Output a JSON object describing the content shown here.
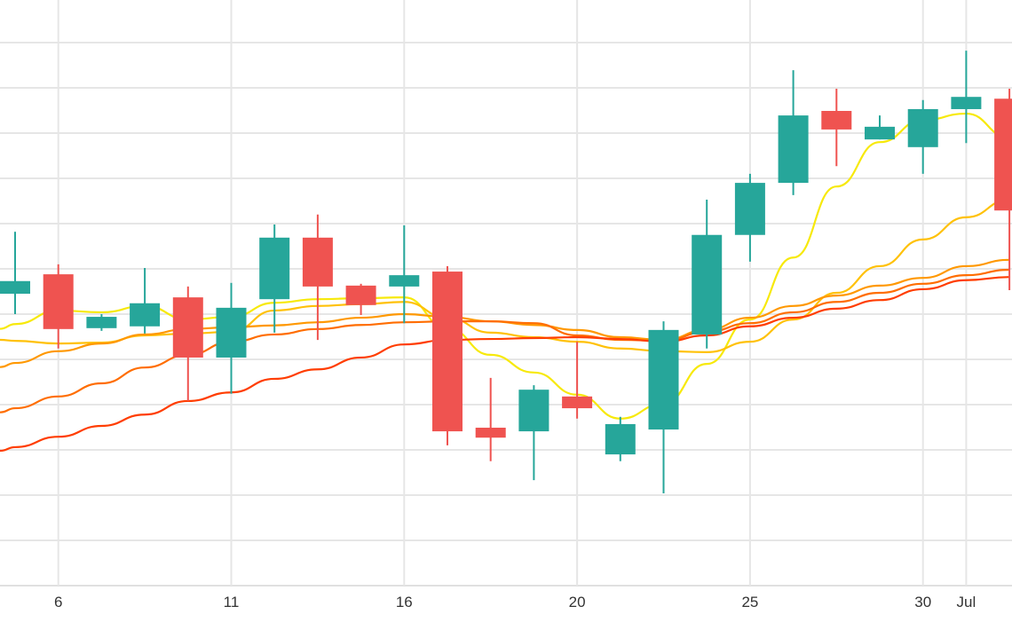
{
  "chart_data": {
    "type": "candlestick",
    "title": "",
    "xlabel": "",
    "ylabel": "",
    "x_unit": "trading-day index",
    "ylim": [
      0,
      129.4
    ],
    "y_grid_step": 10,
    "grid": true,
    "x_ticks": [
      {
        "index": 1,
        "label": "6"
      },
      {
        "index": 5,
        "label": "11"
      },
      {
        "index": 9,
        "label": "16"
      },
      {
        "index": 13,
        "label": "20"
      },
      {
        "index": 17,
        "label": "25"
      },
      {
        "index": 21,
        "label": "30"
      },
      {
        "index": 22,
        "label": "Jul"
      }
    ],
    "colors": {
      "up": "#26a69a",
      "down": "#ef5350",
      "grid": "#e6e6e6",
      "axis": "#e0e0e0"
    },
    "candles": [
      {
        "o": 64.5,
        "h": 78.2,
        "l": 60.0,
        "c": 67.3
      },
      {
        "o": 68.8,
        "h": 71.0,
        "l": 52.4,
        "c": 56.7
      },
      {
        "o": 56.9,
        "h": 60.0,
        "l": 56.3,
        "c": 59.4
      },
      {
        "o": 57.3,
        "h": 70.2,
        "l": 55.7,
        "c": 62.4
      },
      {
        "o": 63.7,
        "h": 66.1,
        "l": 40.8,
        "c": 50.4
      },
      {
        "o": 50.4,
        "h": 66.9,
        "l": 42.4,
        "c": 61.4
      },
      {
        "o": 63.3,
        "h": 79.8,
        "l": 55.9,
        "c": 76.9
      },
      {
        "o": 76.9,
        "h": 82.0,
        "l": 54.3,
        "c": 66.1
      },
      {
        "o": 66.3,
        "h": 66.7,
        "l": 59.8,
        "c": 62.0
      },
      {
        "o": 66.1,
        "h": 79.6,
        "l": 58.0,
        "c": 68.6
      },
      {
        "o": 69.4,
        "h": 70.6,
        "l": 31.0,
        "c": 34.1
      },
      {
        "o": 34.9,
        "h": 45.9,
        "l": 27.5,
        "c": 32.7
      },
      {
        "o": 34.1,
        "h": 44.3,
        "l": 23.3,
        "c": 43.3
      },
      {
        "o": 41.8,
        "h": 53.9,
        "l": 36.9,
        "c": 39.2
      },
      {
        "o": 29.0,
        "h": 37.3,
        "l": 27.5,
        "c": 35.7
      },
      {
        "o": 34.5,
        "h": 58.4,
        "l": 20.4,
        "c": 56.5
      },
      {
        "o": 55.5,
        "h": 85.3,
        "l": 52.4,
        "c": 77.5
      },
      {
        "o": 77.5,
        "h": 91.0,
        "l": 71.6,
        "c": 89.0
      },
      {
        "o": 89.0,
        "h": 113.9,
        "l": 86.3,
        "c": 103.9
      },
      {
        "o": 104.9,
        "h": 109.8,
        "l": 92.7,
        "c": 100.8
      },
      {
        "o": 98.6,
        "h": 103.9,
        "l": 98.6,
        "c": 101.4
      },
      {
        "o": 96.9,
        "h": 107.3,
        "l": 91.0,
        "c": 105.3
      },
      {
        "o": 105.3,
        "h": 118.2,
        "l": 97.8,
        "c": 108.0
      },
      {
        "o": 107.6,
        "h": 109.8,
        "l": 65.3,
        "c": 82.9
      }
    ],
    "series": [
      {
        "name": "ma-1",
        "color": "#f7e90a",
        "values": [
          57.8,
          60.8,
          60.4,
          61.8,
          58.8,
          59.4,
          62.5,
          63.3,
          63.5,
          63.7,
          56.9,
          51.0,
          47.1,
          42.2,
          36.9,
          40.2,
          49.0,
          58.8,
          72.5,
          88.2,
          98.0,
          102.9,
          104.3,
          99.0
        ]
      },
      {
        "name": "ma-2",
        "color": "#ffc107",
        "values": [
          54.1,
          53.5,
          53.7,
          55.3,
          55.7,
          56.1,
          60.8,
          61.8,
          62.2,
          62.7,
          59.2,
          55.9,
          54.9,
          53.9,
          52.4,
          51.8,
          51.6,
          53.9,
          58.8,
          64.7,
          70.6,
          76.5,
          81.4,
          85.3
        ]
      },
      {
        "name": "ma-3",
        "color": "#ff9800",
        "values": [
          49.2,
          51.8,
          53.5,
          55.5,
          56.7,
          57.1,
          57.5,
          58.2,
          59.2,
          60.0,
          59.4,
          58.4,
          57.6,
          56.5,
          54.9,
          54.3,
          56.5,
          59.2,
          61.8,
          64.1,
          66.3,
          68.0,
          70.6,
          72.0
        ]
      },
      {
        "name": "ma-4",
        "color": "#ff6d00",
        "values": [
          39.2,
          41.8,
          44.7,
          48.2,
          51.0,
          53.9,
          55.5,
          56.7,
          57.6,
          58.2,
          58.4,
          58.4,
          58.0,
          55.3,
          54.3,
          54.1,
          56.1,
          58.0,
          60.4,
          62.7,
          64.7,
          66.7,
          68.6,
          69.8
        ]
      },
      {
        "name": "ma-5",
        "color": "#ff3d00",
        "values": [
          30.6,
          32.9,
          35.3,
          37.8,
          40.8,
          42.7,
          45.7,
          47.8,
          50.4,
          53.3,
          54.3,
          54.5,
          54.7,
          54.9,
          54.5,
          53.9,
          55.3,
          57.3,
          59.2,
          61.2,
          63.1,
          65.5,
          67.5,
          68.2
        ]
      }
    ]
  }
}
